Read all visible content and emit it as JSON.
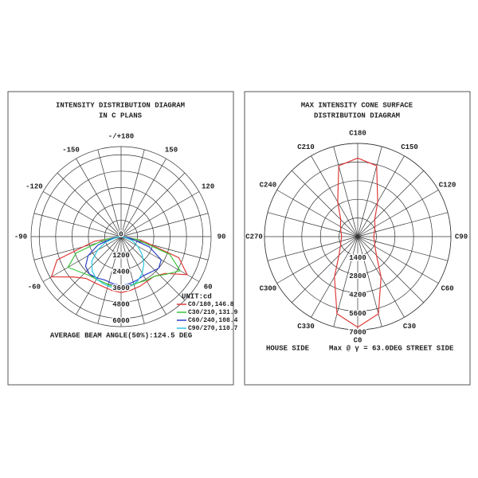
{
  "chart_data": [
    {
      "type": "polar",
      "title": "INTENSITY DISTRIBUTION DIAGRAM",
      "subtitle": "IN C PLANS",
      "rlim": [
        0,
        6600
      ],
      "rticks": [
        0,
        1200,
        2400,
        3600,
        4800,
        6000
      ],
      "angleticks": [
        -150,
        -120,
        -90,
        -60,
        60,
        90,
        120,
        150,
        {
          "value": 180,
          "label": "-/+180"
        }
      ],
      "x": [
        -90,
        -80,
        -70,
        -60,
        -50,
        -40,
        -30,
        -20,
        -10,
        0,
        10,
        20,
        30,
        40,
        50,
        60,
        70,
        80,
        90
      ],
      "series": [
        {
          "name": "C0/180,146.8",
          "color": "#e03c3c",
          "values": [
            0,
            2000,
            5000,
            5900,
            4600,
            4000,
            3900,
            3900,
            4000,
            4100,
            4000,
            3900,
            3800,
            3800,
            4200,
            5600,
            4500,
            1500,
            0
          ]
        },
        {
          "name": "C30/210,131.9",
          "color": "#3cc43c",
          "values": [
            0,
            1200,
            3500,
            4500,
            4000,
            3700,
            3600,
            3600,
            3700,
            3800,
            3700,
            3600,
            3700,
            3800,
            4300,
            5000,
            3800,
            1200,
            0
          ]
        },
        {
          "name": "C60/240,108.4",
          "color": "#2a3fc8",
          "values": [
            0,
            600,
            1800,
            2800,
            3400,
            3600,
            3500,
            3400,
            3500,
            3600,
            3500,
            3400,
            3300,
            3400,
            3600,
            3400,
            2200,
            700,
            0
          ]
        },
        {
          "name": "C90/270,110.7",
          "color": "#2cc6e0",
          "values": [
            0,
            400,
            1200,
            2000,
            2800,
            3300,
            3600,
            3700,
            3800,
            3800,
            3700,
            3500,
            3100,
            2600,
            2000,
            1400,
            900,
            300,
            0
          ]
        }
      ],
      "unit": "UNIT:cd",
      "note": "AVERAGE BEAM ANGLE(50%):124.5 DEG"
    },
    {
      "type": "polar",
      "title": "MAX INTENSITY CONE SURFACE",
      "subtitle": "DISTRIBUTION DIAGRAM",
      "rlim": [
        0,
        7000
      ],
      "rticks": [
        1400,
        2800,
        4200,
        5600,
        7000
      ],
      "angleticks": [
        {
          "value": 0,
          "label": "C0"
        },
        {
          "value": 30,
          "label": "C30"
        },
        {
          "value": 60,
          "label": "C60"
        },
        {
          "value": 90,
          "label": "C90"
        },
        {
          "value": 120,
          "label": "C120"
        },
        {
          "value": 150,
          "label": "C150"
        },
        {
          "value": 180,
          "label": "C180"
        },
        {
          "value": 210,
          "label": "C210"
        },
        {
          "value": 240,
          "label": "C240"
        },
        {
          "value": 270,
          "label": "C270"
        },
        {
          "value": 300,
          "label": "C300"
        },
        {
          "value": 330,
          "label": "C330"
        }
      ],
      "x": [
        0,
        15,
        30,
        45,
        60,
        75,
        90,
        105,
        120,
        135,
        150,
        165,
        180,
        195,
        210,
        225,
        240,
        255,
        270,
        285,
        300,
        315,
        330,
        345,
        360
      ],
      "series": [
        {
          "name": "Max",
          "color": "#e03c3c",
          "values": [
            6800,
            6000,
            3500,
            2000,
            1500,
            1300,
            1200,
            1300,
            1500,
            1800,
            3000,
            5500,
            5900,
            5500,
            3000,
            1800,
            1500,
            1300,
            1200,
            1300,
            1500,
            2000,
            3500,
            6000,
            6800
          ]
        }
      ],
      "annotations": [
        "HOUSE SIDE",
        "Max @ γ = 63.0DEG",
        "STREET SIDE"
      ]
    }
  ]
}
